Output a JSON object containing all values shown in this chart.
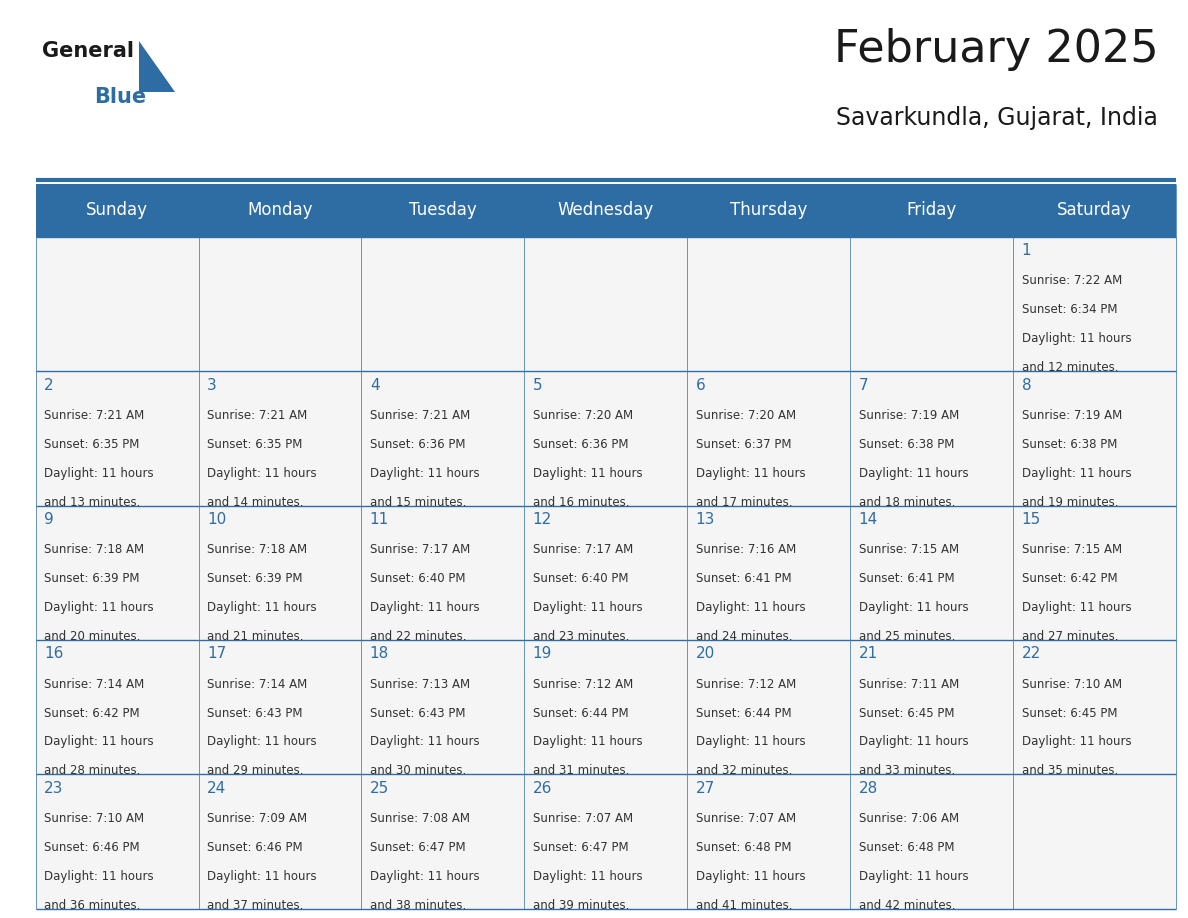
{
  "title": "February 2025",
  "subtitle": "Savarkundla, Gujarat, India",
  "header_bg": "#2E6DA4",
  "header_text_color": "#FFFFFF",
  "cell_bg": "#F5F5F5",
  "day_number_color": "#2E6DA4",
  "info_text_color": "#333333",
  "border_color": "#2E6DA4",
  "days_of_week": [
    "Sunday",
    "Monday",
    "Tuesday",
    "Wednesday",
    "Thursday",
    "Friday",
    "Saturday"
  ],
  "weeks": [
    [
      {
        "day": null
      },
      {
        "day": null
      },
      {
        "day": null
      },
      {
        "day": null
      },
      {
        "day": null
      },
      {
        "day": null
      },
      {
        "day": 1,
        "sunrise": "7:22 AM",
        "sunset": "6:34 PM",
        "daylight": "11 hours and 12 minutes."
      }
    ],
    [
      {
        "day": 2,
        "sunrise": "7:21 AM",
        "sunset": "6:35 PM",
        "daylight": "11 hours and 13 minutes."
      },
      {
        "day": 3,
        "sunrise": "7:21 AM",
        "sunset": "6:35 PM",
        "daylight": "11 hours and 14 minutes."
      },
      {
        "day": 4,
        "sunrise": "7:21 AM",
        "sunset": "6:36 PM",
        "daylight": "11 hours and 15 minutes."
      },
      {
        "day": 5,
        "sunrise": "7:20 AM",
        "sunset": "6:36 PM",
        "daylight": "11 hours and 16 minutes."
      },
      {
        "day": 6,
        "sunrise": "7:20 AM",
        "sunset": "6:37 PM",
        "daylight": "11 hours and 17 minutes."
      },
      {
        "day": 7,
        "sunrise": "7:19 AM",
        "sunset": "6:38 PM",
        "daylight": "11 hours and 18 minutes."
      },
      {
        "day": 8,
        "sunrise": "7:19 AM",
        "sunset": "6:38 PM",
        "daylight": "11 hours and 19 minutes."
      }
    ],
    [
      {
        "day": 9,
        "sunrise": "7:18 AM",
        "sunset": "6:39 PM",
        "daylight": "11 hours and 20 minutes."
      },
      {
        "day": 10,
        "sunrise": "7:18 AM",
        "sunset": "6:39 PM",
        "daylight": "11 hours and 21 minutes."
      },
      {
        "day": 11,
        "sunrise": "7:17 AM",
        "sunset": "6:40 PM",
        "daylight": "11 hours and 22 minutes."
      },
      {
        "day": 12,
        "sunrise": "7:17 AM",
        "sunset": "6:40 PM",
        "daylight": "11 hours and 23 minutes."
      },
      {
        "day": 13,
        "sunrise": "7:16 AM",
        "sunset": "6:41 PM",
        "daylight": "11 hours and 24 minutes."
      },
      {
        "day": 14,
        "sunrise": "7:15 AM",
        "sunset": "6:41 PM",
        "daylight": "11 hours and 25 minutes."
      },
      {
        "day": 15,
        "sunrise": "7:15 AM",
        "sunset": "6:42 PM",
        "daylight": "11 hours and 27 minutes."
      }
    ],
    [
      {
        "day": 16,
        "sunrise": "7:14 AM",
        "sunset": "6:42 PM",
        "daylight": "11 hours and 28 minutes."
      },
      {
        "day": 17,
        "sunrise": "7:14 AM",
        "sunset": "6:43 PM",
        "daylight": "11 hours and 29 minutes."
      },
      {
        "day": 18,
        "sunrise": "7:13 AM",
        "sunset": "6:43 PM",
        "daylight": "11 hours and 30 minutes."
      },
      {
        "day": 19,
        "sunrise": "7:12 AM",
        "sunset": "6:44 PM",
        "daylight": "11 hours and 31 minutes."
      },
      {
        "day": 20,
        "sunrise": "7:12 AM",
        "sunset": "6:44 PM",
        "daylight": "11 hours and 32 minutes."
      },
      {
        "day": 21,
        "sunrise": "7:11 AM",
        "sunset": "6:45 PM",
        "daylight": "11 hours and 33 minutes."
      },
      {
        "day": 22,
        "sunrise": "7:10 AM",
        "sunset": "6:45 PM",
        "daylight": "11 hours and 35 minutes."
      }
    ],
    [
      {
        "day": 23,
        "sunrise": "7:10 AM",
        "sunset": "6:46 PM",
        "daylight": "11 hours and 36 minutes."
      },
      {
        "day": 24,
        "sunrise": "7:09 AM",
        "sunset": "6:46 PM",
        "daylight": "11 hours and 37 minutes."
      },
      {
        "day": 25,
        "sunrise": "7:08 AM",
        "sunset": "6:47 PM",
        "daylight": "11 hours and 38 minutes."
      },
      {
        "day": 26,
        "sunrise": "7:07 AM",
        "sunset": "6:47 PM",
        "daylight": "11 hours and 39 minutes."
      },
      {
        "day": 27,
        "sunrise": "7:07 AM",
        "sunset": "6:48 PM",
        "daylight": "11 hours and 41 minutes."
      },
      {
        "day": 28,
        "sunrise": "7:06 AM",
        "sunset": "6:48 PM",
        "daylight": "11 hours and 42 minutes."
      },
      {
        "day": null
      }
    ]
  ]
}
